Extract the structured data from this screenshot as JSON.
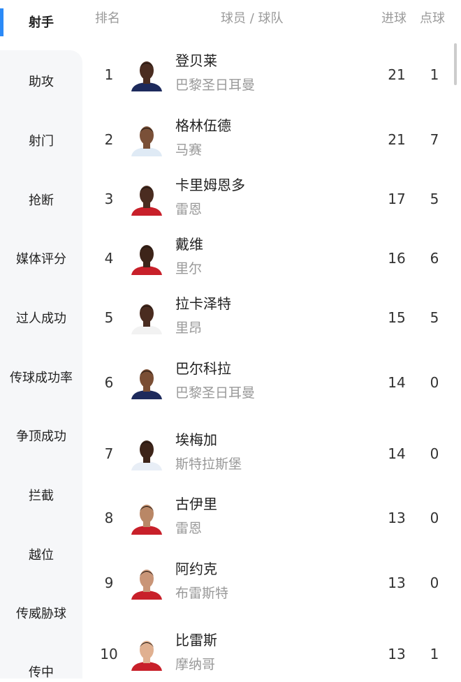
{
  "sidebar": {
    "items": [
      "射手",
      "助攻",
      "射门",
      "抢断",
      "媒体评分",
      "过人成功",
      "传球成功率",
      "争顶成功",
      "拦截",
      "越位",
      "传威胁球",
      "传中"
    ],
    "active_index": 0,
    "accent": "#2b8af7"
  },
  "table": {
    "headers": {
      "rank": "排名",
      "player_team": "球员 / 球队",
      "goals": "进球",
      "penalties": "点球"
    },
    "rows": [
      {
        "rank": "1",
        "name": "登贝莱",
        "team": "巴黎圣日耳曼",
        "goals": "21",
        "penalties": "1",
        "jersey": "#1d2a5c",
        "skin": "#4a2c20"
      },
      {
        "rank": "2",
        "name": "格林伍德",
        "team": "马赛",
        "goals": "21",
        "penalties": "7",
        "jersey": "#dfeaf5",
        "skin": "#7a5038"
      },
      {
        "rank": "3",
        "name": "卡里姆恩多",
        "team": "雷恩",
        "goals": "17",
        "penalties": "5",
        "jersey": "#c8202a",
        "skin": "#4a2c20"
      },
      {
        "rank": "4",
        "name": "戴维",
        "team": "里尔",
        "goals": "16",
        "penalties": "6",
        "jersey": "#c8202a",
        "skin": "#3d2419"
      },
      {
        "rank": "5",
        "name": "拉卡泽特",
        "team": "里昂",
        "goals": "15",
        "penalties": "5",
        "jersey": "#f2f2f2",
        "skin": "#4a2c20"
      },
      {
        "rank": "6",
        "name": "巴尔科拉",
        "team": "巴黎圣日耳曼",
        "goals": "14",
        "penalties": "0",
        "jersey": "#1d2a5c",
        "skin": "#7a4e34"
      },
      {
        "rank": "7",
        "name": "埃梅加",
        "team": "斯特拉斯堡",
        "goals": "14",
        "penalties": "0",
        "jersey": "#e8eef6",
        "skin": "#3d2419"
      },
      {
        "rank": "8",
        "name": "古伊里",
        "team": "雷恩",
        "goals": "13",
        "penalties": "0",
        "jersey": "#c8202a",
        "skin": "#b98766"
      },
      {
        "rank": "9",
        "name": "阿约克",
        "team": "布雷斯特",
        "goals": "13",
        "penalties": "0",
        "jersey": "#c8202a",
        "skin": "#c99577"
      },
      {
        "rank": "10",
        "name": "比雷斯",
        "team": "摩纳哥",
        "goals": "13",
        "penalties": "1",
        "jersey": "#c8202a",
        "skin": "#e0b090"
      }
    ]
  }
}
